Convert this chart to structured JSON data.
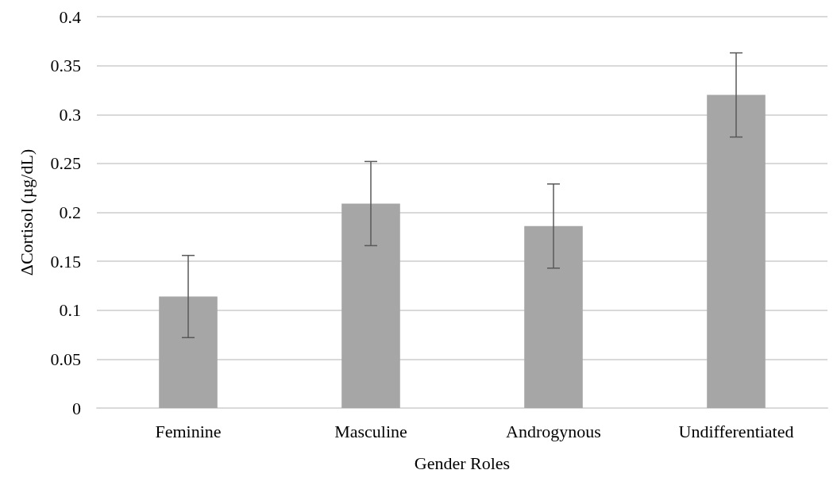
{
  "chart_data": {
    "type": "bar",
    "xlabel": "Gender Roles",
    "ylabel": "ΔCortisol (µg/dL)",
    "categories": [
      "Feminine",
      "Masculine",
      "Androgynous",
      "Undifferentiated"
    ],
    "values": [
      0.114,
      0.209,
      0.186,
      0.32
    ],
    "errors": [
      0.042,
      0.043,
      0.043,
      0.043
    ],
    "color": "#a6a6a6",
    "ylim": [
      0,
      0.4
    ],
    "yticks": [
      0,
      0.05,
      0.1,
      0.15,
      0.2,
      0.25,
      0.3,
      0.35,
      0.4
    ],
    "grid": "y"
  }
}
